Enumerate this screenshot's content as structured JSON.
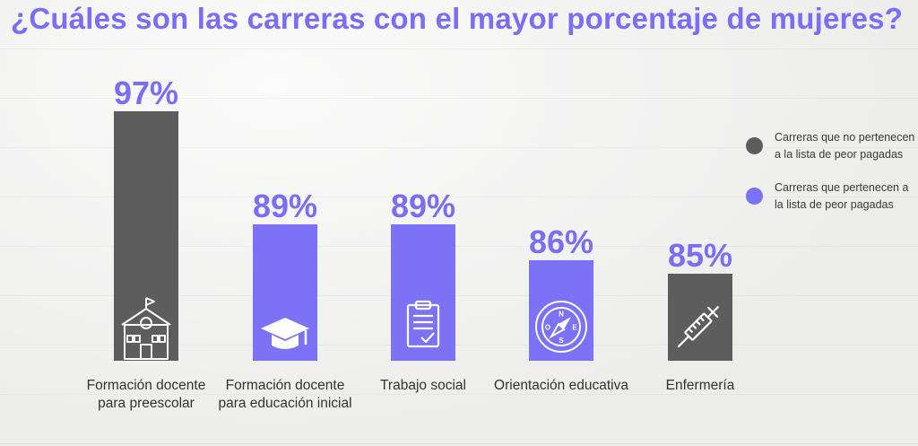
{
  "title": "¿Cuáles son las carreras con el mayor porcentaje de mujeres?",
  "colors": {
    "gray": "#5d5d5d",
    "purple": "#7b72f5",
    "value_text": "#7b6ef6"
  },
  "legend": [
    {
      "label": "Carreras que no pertenecen a la lista de peor pagadas",
      "color": "#5d5d5d"
    },
    {
      "label": "Carreras  que pertenecen a la lista de peor pagadas",
      "color": "#7b72f5"
    }
  ],
  "chart_data": {
    "type": "bar",
    "categories": [
      "Formación docente para preescolar",
      "Formación docente para educación inicial",
      "Trabajo social",
      "Orientación educativa",
      "Enfermería"
    ],
    "values": [
      97,
      89,
      89,
      86,
      85
    ],
    "value_labels": [
      "97%",
      "89%",
      "89%",
      "86%",
      "85%"
    ],
    "bar_groups": [
      "no",
      "si",
      "si",
      "si",
      "no"
    ],
    "icons": [
      "school-icon",
      "graduation-cap-icon",
      "clipboard-check-icon",
      "compass-icon",
      "syringe-icon"
    ],
    "compass_letters": [
      "N",
      "S",
      "E",
      "O"
    ],
    "title": "¿Cuáles son las carreras con el mayor porcentaje de mujeres?",
    "xlabel": "",
    "ylabel": "",
    "grid": false,
    "legend_position": "right"
  }
}
